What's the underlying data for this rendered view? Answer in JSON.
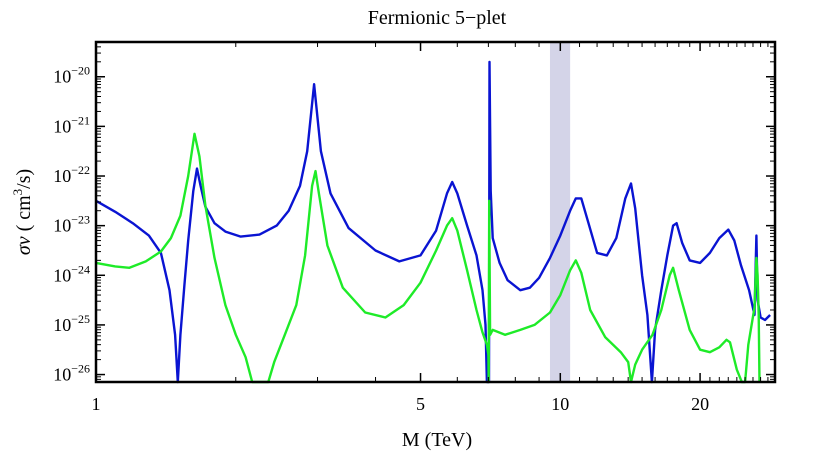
{
  "chart_data": {
    "type": "line",
    "title": "Fermionic 5−plet",
    "xlabel": "M (TeV)",
    "ylabel": {
      "sym": "σv",
      "open": " ( cm",
      "sup": "3",
      "close": "/s)"
    },
    "xscale": "log",
    "yscale": "log",
    "xlim": [
      1,
      29
    ],
    "ylim_log10": [
      -26.15,
      -19.3
    ],
    "x_ticks": [
      {
        "value": 1,
        "label": "1"
      },
      {
        "value": 5,
        "label": "5"
      },
      {
        "value": 10,
        "label": "10"
      },
      {
        "value": 20,
        "label": "20"
      }
    ],
    "y_ticks": [
      {
        "exp": -20,
        "base": "10",
        "sup": "−20"
      },
      {
        "exp": -21,
        "base": "10",
        "sup": "−21"
      },
      {
        "exp": -22,
        "base": "10",
        "sup": "−22"
      },
      {
        "exp": -23,
        "base": "10",
        "sup": "−23"
      },
      {
        "exp": -24,
        "base": "10",
        "sup": "−24"
      },
      {
        "exp": -25,
        "base": "10",
        "sup": "−25"
      },
      {
        "exp": -26,
        "base": "10",
        "sup": "−26"
      }
    ],
    "shaded_band": {
      "x_from": 9.5,
      "x to": 10.5,
      "color": "#d4d4e8"
    },
    "series": [
      {
        "name": "blue curve",
        "color": "#0a14d2",
        "points": [
          [
            1.0,
            -22.5
          ],
          [
            1.1,
            -22.72
          ],
          [
            1.2,
            -22.95
          ],
          [
            1.3,
            -23.2
          ],
          [
            1.38,
            -23.55
          ],
          [
            1.44,
            -24.3
          ],
          [
            1.48,
            -25.2
          ],
          [
            1.5,
            -26.15
          ],
          [
            1.52,
            -25.2
          ],
          [
            1.55,
            -24.2
          ],
          [
            1.58,
            -23.3
          ],
          [
            1.62,
            -22.3
          ],
          [
            1.65,
            -21.85
          ],
          [
            1.68,
            -22.2
          ],
          [
            1.72,
            -22.62
          ],
          [
            1.8,
            -22.95
          ],
          [
            1.9,
            -23.12
          ],
          [
            2.05,
            -23.22
          ],
          [
            2.25,
            -23.18
          ],
          [
            2.45,
            -23.0
          ],
          [
            2.6,
            -22.7
          ],
          [
            2.75,
            -22.2
          ],
          [
            2.85,
            -21.5
          ],
          [
            2.95,
            -20.15
          ],
          [
            3.05,
            -21.5
          ],
          [
            3.2,
            -22.35
          ],
          [
            3.5,
            -23.05
          ],
          [
            4.0,
            -23.5
          ],
          [
            4.5,
            -23.72
          ],
          [
            5.0,
            -23.6
          ],
          [
            5.4,
            -23.1
          ],
          [
            5.7,
            -22.35
          ],
          [
            5.85,
            -22.12
          ],
          [
            6.0,
            -22.35
          ],
          [
            6.3,
            -23.0
          ],
          [
            6.6,
            -23.6
          ],
          [
            6.8,
            -24.3
          ],
          [
            6.9,
            -25.0
          ],
          [
            6.95,
            -26.15
          ],
          [
            7.02,
            -26.15
          ],
          [
            7.04,
            -19.7
          ],
          [
            7.08,
            -22.3
          ],
          [
            7.15,
            -23.25
          ],
          [
            7.4,
            -23.75
          ],
          [
            7.7,
            -24.1
          ],
          [
            8.2,
            -24.3
          ],
          [
            8.6,
            -24.25
          ],
          [
            9.0,
            -24.05
          ],
          [
            9.5,
            -23.65
          ],
          [
            10.0,
            -23.2
          ],
          [
            10.5,
            -22.7
          ],
          [
            10.8,
            -22.45
          ],
          [
            11.1,
            -22.45
          ],
          [
            11.5,
            -22.95
          ],
          [
            12.0,
            -23.55
          ],
          [
            12.6,
            -23.6
          ],
          [
            13.2,
            -23.25
          ],
          [
            13.8,
            -22.45
          ],
          [
            14.2,
            -22.15
          ],
          [
            14.5,
            -22.65
          ],
          [
            15.0,
            -24.0
          ],
          [
            15.4,
            -24.8
          ],
          [
            15.75,
            -26.15
          ],
          [
            16.0,
            -25.1
          ],
          [
            16.5,
            -24.3
          ],
          [
            17.0,
            -23.6
          ],
          [
            17.5,
            -23.0
          ],
          [
            17.8,
            -22.95
          ],
          [
            18.3,
            -23.35
          ],
          [
            19.0,
            -23.7
          ],
          [
            20.0,
            -23.75
          ],
          [
            21.0,
            -23.55
          ],
          [
            22.0,
            -23.25
          ],
          [
            23.0,
            -23.08
          ],
          [
            23.7,
            -23.3
          ],
          [
            24.5,
            -23.8
          ],
          [
            25.5,
            -24.3
          ],
          [
            26.2,
            -24.8
          ],
          [
            26.45,
            -23.2
          ],
          [
            26.6,
            -24.5
          ],
          [
            27.0,
            -24.85
          ],
          [
            27.6,
            -24.9
          ],
          [
            28.3,
            -24.8
          ]
        ]
      },
      {
        "name": "green curve",
        "color": "#1eeb28",
        "points": [
          [
            1.0,
            -23.75
          ],
          [
            1.1,
            -23.82
          ],
          [
            1.18,
            -23.85
          ],
          [
            1.28,
            -23.72
          ],
          [
            1.38,
            -23.52
          ],
          [
            1.45,
            -23.25
          ],
          [
            1.52,
            -22.8
          ],
          [
            1.58,
            -22.0
          ],
          [
            1.63,
            -21.15
          ],
          [
            1.67,
            -21.6
          ],
          [
            1.72,
            -22.6
          ],
          [
            1.8,
            -23.65
          ],
          [
            1.9,
            -24.6
          ],
          [
            2.0,
            -25.2
          ],
          [
            2.1,
            -25.65
          ],
          [
            2.17,
            -26.15
          ],
          [
            2.35,
            -26.15
          ],
          [
            2.42,
            -25.75
          ],
          [
            2.55,
            -25.2
          ],
          [
            2.7,
            -24.6
          ],
          [
            2.82,
            -23.6
          ],
          [
            2.92,
            -22.2
          ],
          [
            2.97,
            -21.9
          ],
          [
            3.02,
            -22.35
          ],
          [
            3.15,
            -23.4
          ],
          [
            3.4,
            -24.25
          ],
          [
            3.8,
            -24.75
          ],
          [
            4.2,
            -24.85
          ],
          [
            4.6,
            -24.6
          ],
          [
            5.0,
            -24.15
          ],
          [
            5.4,
            -23.5
          ],
          [
            5.7,
            -23.0
          ],
          [
            5.85,
            -22.85
          ],
          [
            6.0,
            -23.1
          ],
          [
            6.3,
            -23.9
          ],
          [
            6.6,
            -24.7
          ],
          [
            6.8,
            -25.15
          ],
          [
            6.95,
            -25.4
          ],
          [
            7.0,
            -25.6
          ],
          [
            7.01,
            -26.15
          ],
          [
            7.03,
            -22.5
          ],
          [
            7.06,
            -25.2
          ],
          [
            7.15,
            -25.1
          ],
          [
            7.6,
            -25.2
          ],
          [
            8.2,
            -25.1
          ],
          [
            8.8,
            -25.0
          ],
          [
            9.5,
            -24.75
          ],
          [
            10.0,
            -24.4
          ],
          [
            10.5,
            -23.9
          ],
          [
            10.8,
            -23.7
          ],
          [
            11.1,
            -23.95
          ],
          [
            11.6,
            -24.7
          ],
          [
            12.5,
            -25.25
          ],
          [
            13.5,
            -25.55
          ],
          [
            14.0,
            -25.75
          ],
          [
            14.2,
            -26.15
          ],
          [
            14.5,
            -25.8
          ],
          [
            15.0,
            -25.5
          ],
          [
            15.8,
            -25.2
          ],
          [
            16.5,
            -24.7
          ],
          [
            17.2,
            -24.0
          ],
          [
            17.5,
            -23.85
          ],
          [
            18.0,
            -24.3
          ],
          [
            19.0,
            -25.1
          ],
          [
            20.0,
            -25.5
          ],
          [
            21.0,
            -25.55
          ],
          [
            22.0,
            -25.45
          ],
          [
            22.8,
            -25.3
          ],
          [
            23.2,
            -25.35
          ],
          [
            24.0,
            -25.9
          ],
          [
            24.6,
            -26.15
          ],
          [
            25.0,
            -26.15
          ],
          [
            25.4,
            -25.4
          ],
          [
            26.2,
            -24.65
          ],
          [
            26.45,
            -23.65
          ],
          [
            26.6,
            -24.0
          ],
          [
            26.75,
            -24.8
          ],
          [
            26.85,
            -26.15
          ]
        ]
      }
    ]
  }
}
